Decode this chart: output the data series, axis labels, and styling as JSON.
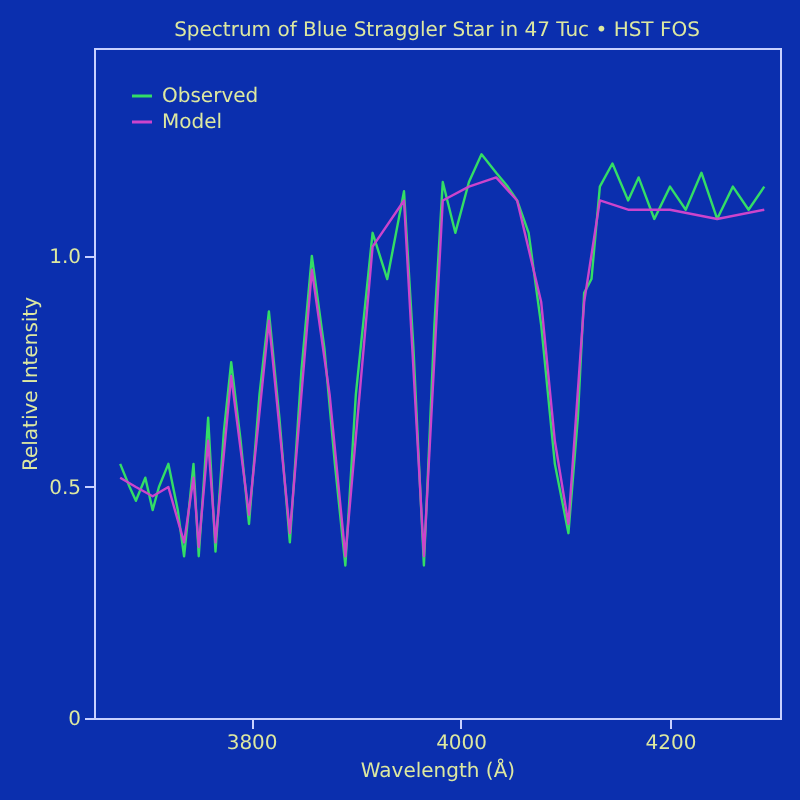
{
  "chart_data": {
    "type": "line",
    "title": "Spectrum of Blue Straggler Star in 47 Tuc • HST FOS",
    "xlabel": "Wavelength (Å)",
    "ylabel": "Relative Intensity",
    "xlim": [
      3650,
      4305
    ],
    "xticks": [
      3800,
      4000,
      4200
    ],
    "ylim": [
      0,
      1.45
    ],
    "yticks": [
      0,
      0.5,
      {
        "value": 1,
        "label": "1.0"
      }
    ],
    "grid": false,
    "legend": "top left",
    "series": [
      {
        "name": "Observed",
        "color": "#33dd66",
        "x": [
          3675,
          3684,
          3690,
          3699,
          3706,
          3712,
          3721,
          3730,
          3736,
          3745,
          3750,
          3759,
          3766,
          3774,
          3781,
          3790,
          3798,
          3808,
          3817,
          3827,
          3837,
          3848,
          3858,
          3870,
          3880,
          3890,
          3900,
          3916,
          3930,
          3946,
          3955,
          3965,
          3975,
          3983,
          3995,
          4008,
          4020,
          4034,
          4045,
          4054,
          4065,
          4077,
          4090,
          4103,
          4112,
          4118,
          4125,
          4133,
          4145,
          4160,
          4170,
          4185,
          4200,
          4215,
          4230,
          4245,
          4260,
          4275,
          4290
        ],
        "values": [
          0.55,
          0.5,
          0.47,
          0.52,
          0.45,
          0.5,
          0.55,
          0.45,
          0.35,
          0.55,
          0.35,
          0.65,
          0.36,
          0.62,
          0.77,
          0.6,
          0.42,
          0.7,
          0.88,
          0.65,
          0.38,
          0.75,
          1.0,
          0.8,
          0.55,
          0.33,
          0.7,
          1.05,
          0.95,
          1.14,
          0.8,
          0.33,
          0.85,
          1.16,
          1.05,
          1.16,
          1.22,
          1.18,
          1.15,
          1.12,
          1.05,
          0.85,
          0.55,
          0.4,
          0.65,
          0.92,
          0.95,
          1.15,
          1.2,
          1.12,
          1.17,
          1.08,
          1.15,
          1.1,
          1.18,
          1.08,
          1.15,
          1.1,
          1.15
        ]
      },
      {
        "name": "Model",
        "color": "#cc44cc",
        "x": [
          3675,
          3690,
          3706,
          3721,
          3736,
          3745,
          3750,
          3759,
          3766,
          3781,
          3798,
          3817,
          3837,
          3858,
          3875,
          3890,
          3916,
          3946,
          3965,
          3983,
          4008,
          4034,
          4054,
          4077,
          4090,
          4103,
          4118,
          4133,
          4160,
          4200,
          4245,
          4290
        ],
        "values": [
          0.52,
          0.5,
          0.48,
          0.5,
          0.38,
          0.52,
          0.37,
          0.6,
          0.38,
          0.74,
          0.44,
          0.86,
          0.4,
          0.97,
          0.7,
          0.35,
          1.02,
          1.12,
          0.35,
          1.12,
          1.15,
          1.17,
          1.12,
          0.9,
          0.6,
          0.42,
          0.9,
          1.12,
          1.1,
          1.1,
          1.08,
          1.1
        ]
      }
    ]
  }
}
